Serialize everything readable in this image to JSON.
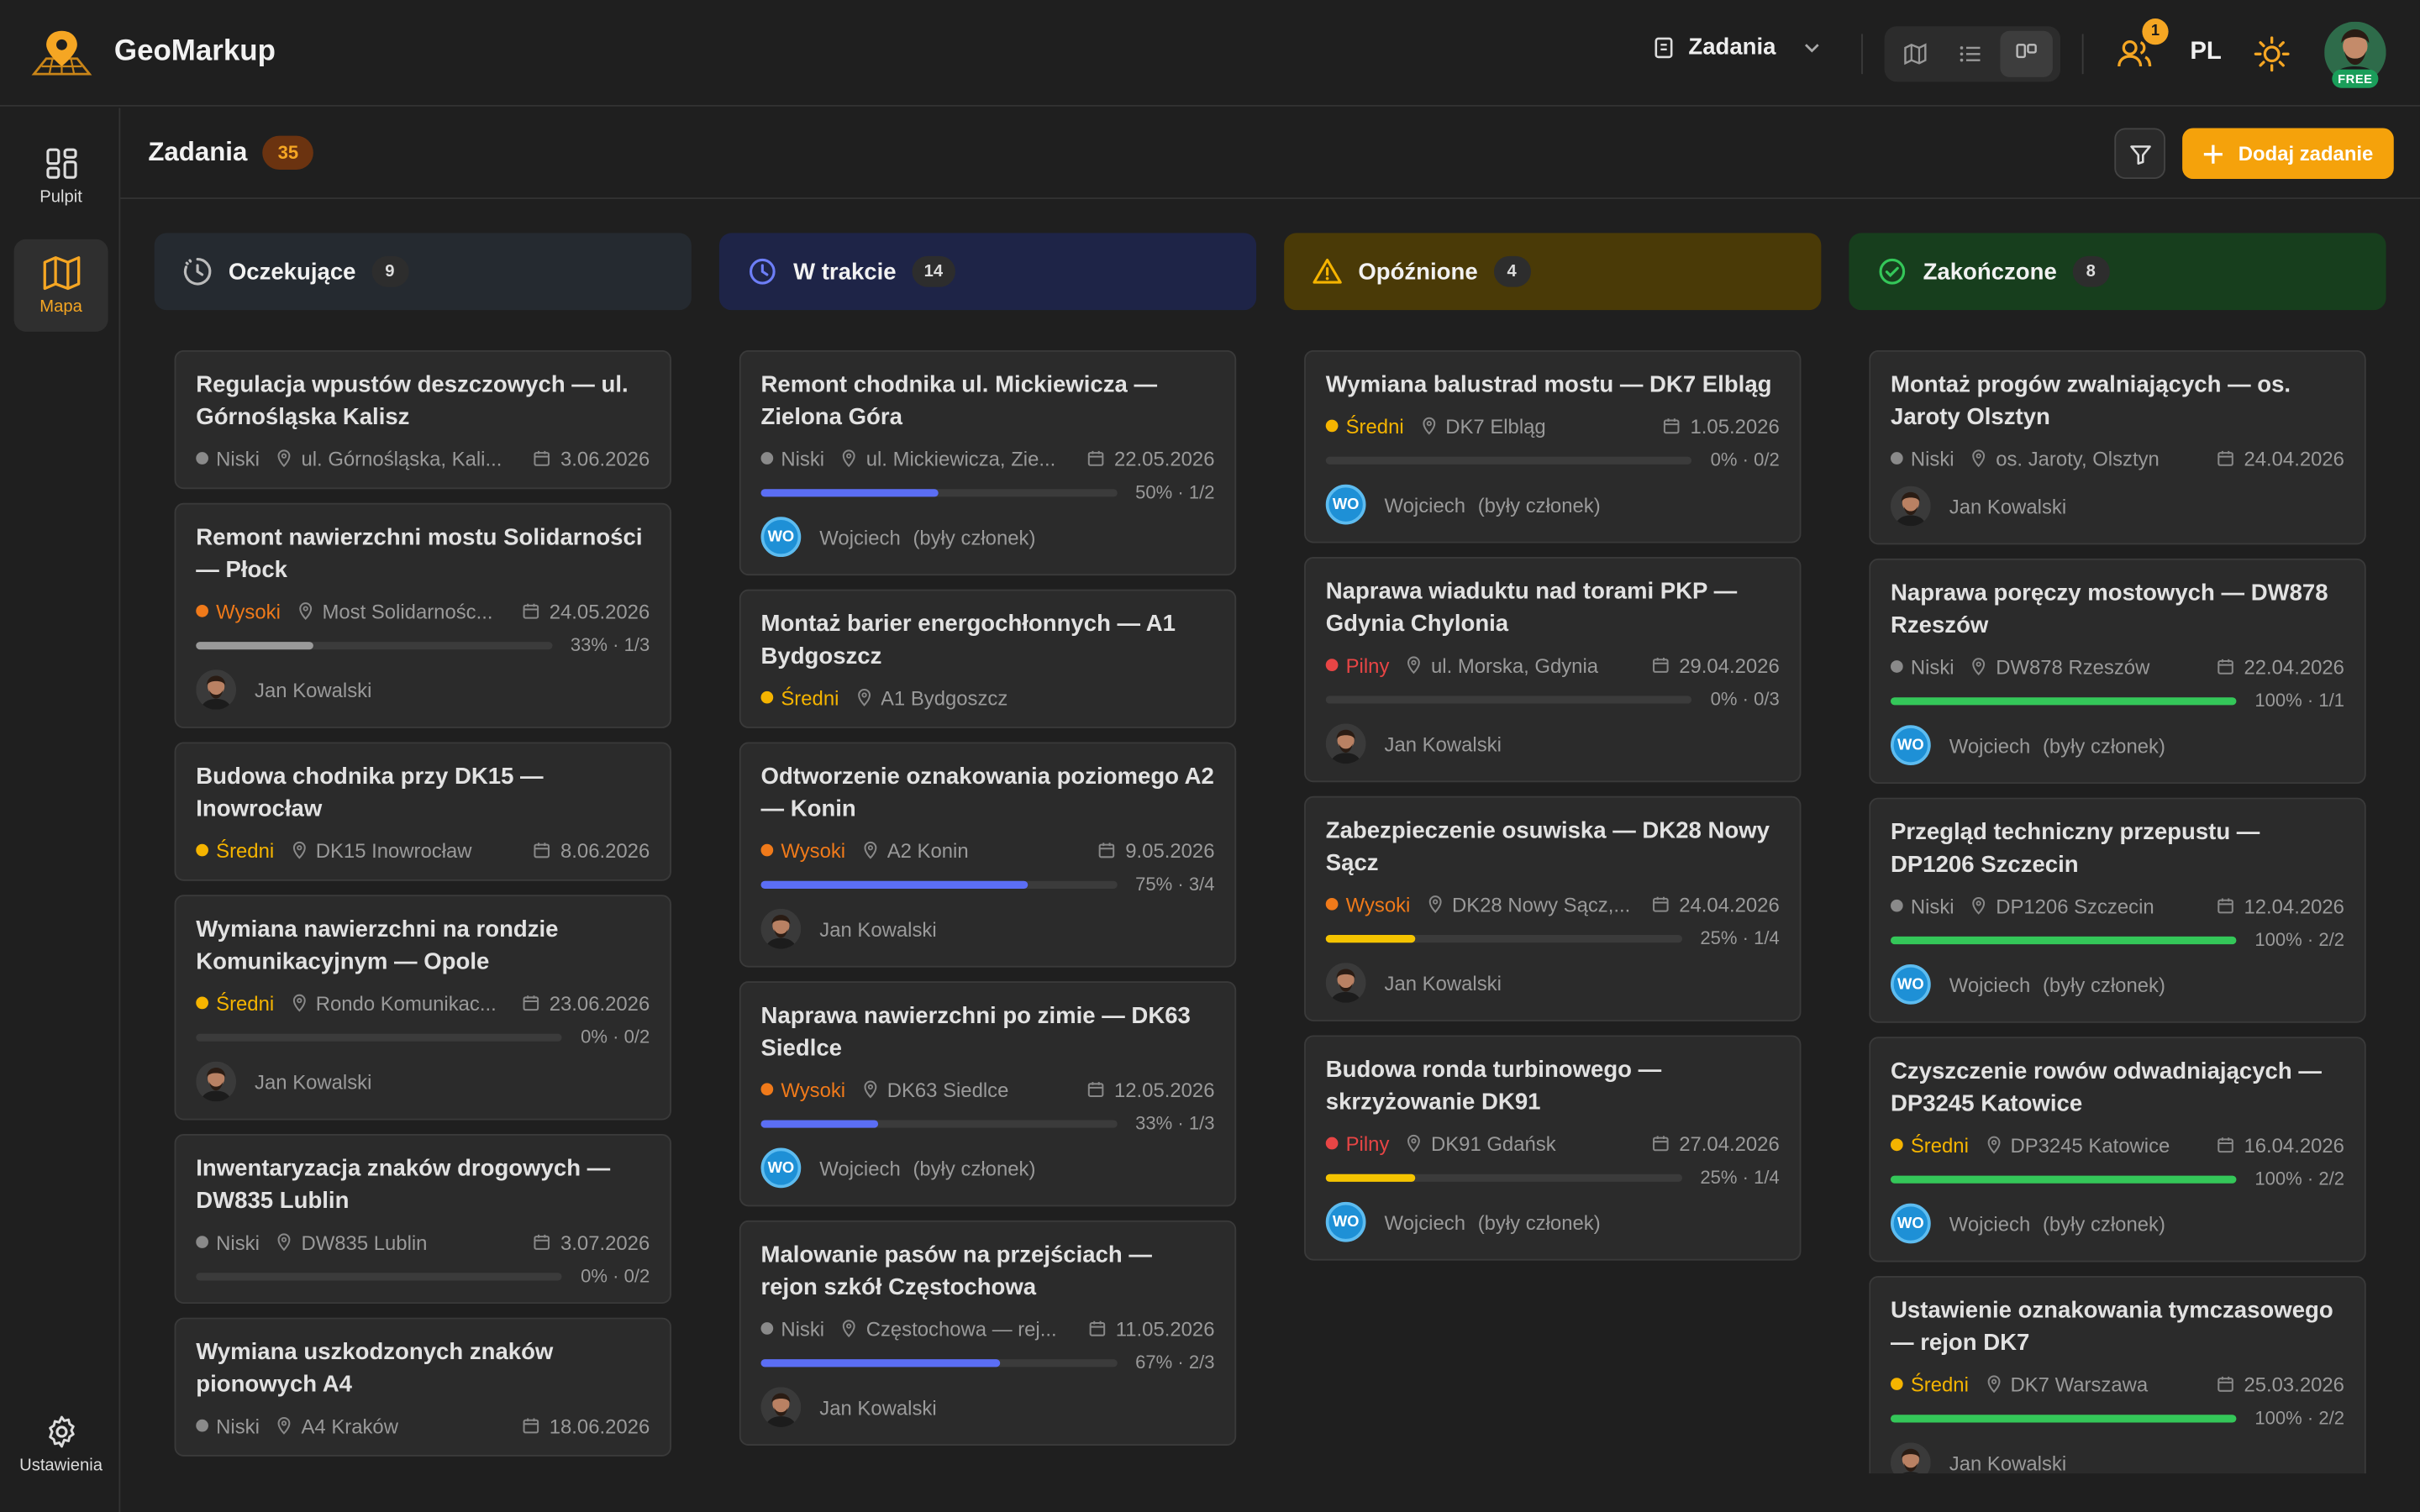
{
  "app": {
    "name": "GeoMarkup"
  },
  "header": {
    "view_selector": "Zadania",
    "notification_count": "1",
    "language": "PL",
    "plan_badge": "FREE"
  },
  "sidebar": {
    "items": [
      {
        "label": "Pulpit"
      },
      {
        "label": "Mapa"
      }
    ],
    "settings_label": "Ustawienia"
  },
  "page": {
    "title": "Zadania",
    "count": "35",
    "add_button": "Dodaj zadanie"
  },
  "colors": {
    "accent": "#f5a623",
    "low": "#8a8a8a",
    "medium": "#f5b400",
    "high": "#f07a1a",
    "urgent": "#e84545",
    "progress_blue": "#5b6ef5",
    "progress_yellow": "#f5c400",
    "progress_green": "#34c759"
  },
  "columns": [
    {
      "title": "Oczekujące",
      "count": "9",
      "cards": [
        {
          "title": "Regulacja wpustów deszczowych — ul. Górnośląska Kalisz",
          "priority": "Niski",
          "priority_color": "low",
          "location": "ul. Górnośląska, Kali...",
          "date": "3.06.2026"
        },
        {
          "title": "Remont nawierzchni mostu Solidarności — Płock",
          "priority": "Wysoki",
          "priority_color": "high",
          "location": "Most Solidarnośc...",
          "date": "24.05.2026",
          "progress": 0.33,
          "progress_text": "33% · 1/3",
          "progress_color": "#9a9a9a",
          "assignee": "Jan Kowalski"
        },
        {
          "title": "Budowa chodnika przy DK15 — Inowrocław",
          "priority": "Średni",
          "priority_color": "medium",
          "location": "DK15 Inowrocław",
          "date": "8.06.2026"
        },
        {
          "title": "Wymiana nawierzchni na rondzie Komunikacyjnym — Opole",
          "priority": "Średni",
          "priority_color": "medium",
          "location": "Rondo Komunikac...",
          "date": "23.06.2026",
          "progress": 0,
          "progress_text": "0% · 0/2",
          "progress_color": "#9a9a9a",
          "assignee": "Jan Kowalski"
        },
        {
          "title": "Inwentaryzacja znaków drogowych — DW835 Lublin",
          "priority": "Niski",
          "priority_color": "low",
          "location": "DW835 Lublin",
          "date": "3.07.2026",
          "progress": 0,
          "progress_text": "0% · 0/2",
          "progress_color": "#9a9a9a"
        },
        {
          "title": "Wymiana uszkodzonych znaków pionowych A4",
          "priority": "Niski",
          "priority_color": "low",
          "location": "A4 Kraków",
          "date": "18.06.2026"
        }
      ]
    },
    {
      "title": "W trakcie",
      "count": "14",
      "cards": [
        {
          "title": "Remont chodnika ul. Mickiewicza — Zielona Góra",
          "priority": "Niski",
          "priority_color": "low",
          "location": "ul. Mickiewicza, Zie...",
          "date": "22.05.2026",
          "progress": 0.5,
          "progress_text": "50% · 1/2",
          "progress_color": "#5b6ef5",
          "assignee": "Wojciech",
          "assignee_note": "(były członek)",
          "initials": "WO"
        },
        {
          "title": "Montaż barier energochłonnych — A1 Bydgoszcz",
          "priority": "Średni",
          "priority_color": "medium",
          "location": "A1 Bydgoszcz",
          "date": ""
        },
        {
          "title": "Odtworzenie oznakowania poziomego A2 — Konin",
          "priority": "Wysoki",
          "priority_color": "high",
          "location": "A2 Konin",
          "date": "9.05.2026",
          "progress": 0.75,
          "progress_text": "75% · 3/4",
          "progress_color": "#5b6ef5",
          "assignee": "Jan Kowalski"
        },
        {
          "title": "Naprawa nawierzchni po zimie — DK63 Siedlce",
          "priority": "Wysoki",
          "priority_color": "high",
          "location": "DK63 Siedlce",
          "date": "12.05.2026",
          "progress": 0.33,
          "progress_text": "33% · 1/3",
          "progress_color": "#5b6ef5",
          "assignee": "Wojciech",
          "assignee_note": "(były członek)",
          "initials": "WO"
        },
        {
          "title": "Malowanie pasów na przejściach — rejon szkół Częstochowa",
          "priority": "Niski",
          "priority_color": "low",
          "location": "Częstochowa — rej...",
          "date": "11.05.2026",
          "progress": 0.67,
          "progress_text": "67% · 2/3",
          "progress_color": "#5b6ef5",
          "assignee": "Jan Kowalski"
        }
      ]
    },
    {
      "title": "Opóźnione",
      "count": "4",
      "cards": [
        {
          "title": "Wymiana balustrad mostu — DK7 Elbląg",
          "priority": "Średni",
          "priority_color": "medium",
          "location": "DK7 Elbląg",
          "date": "1.05.2026",
          "progress": 0,
          "progress_text": "0% · 0/2",
          "progress_color": "#9a9a9a",
          "assignee": "Wojciech",
          "assignee_note": "(były członek)",
          "initials": "WO"
        },
        {
          "title": "Naprawa wiaduktu nad torami PKP — Gdynia Chylonia",
          "priority": "Pilny",
          "priority_color": "urgent",
          "location": "ul. Morska, Gdynia",
          "date": "29.04.2026",
          "progress": 0,
          "progress_text": "0% · 0/3",
          "progress_color": "#9a9a9a",
          "assignee": "Jan Kowalski"
        },
        {
          "title": "Zabezpieczenie osuwiska — DK28 Nowy Sącz",
          "priority": "Wysoki",
          "priority_color": "high",
          "location": "DK28 Nowy Sącz,...",
          "date": "24.04.2026",
          "progress": 0.25,
          "progress_text": "25% · 1/4",
          "progress_color": "#f5c400",
          "assignee": "Jan Kowalski"
        },
        {
          "title": "Budowa ronda turbinowego — skrzyżowanie DK91",
          "priority": "Pilny",
          "priority_color": "urgent",
          "location": "DK91 Gdańsk",
          "date": "27.04.2026",
          "progress": 0.25,
          "progress_text": "25% · 1/4",
          "progress_color": "#f5c400",
          "assignee": "Wojciech",
          "assignee_note": "(były członek)",
          "initials": "WO"
        }
      ]
    },
    {
      "title": "Zakończone",
      "count": "8",
      "cards": [
        {
          "title": "Montaż progów zwalniających — os. Jaroty Olsztyn",
          "priority": "Niski",
          "priority_color": "low",
          "location": "os. Jaroty, Olsztyn",
          "date": "24.04.2026",
          "assignee": "Jan Kowalski"
        },
        {
          "title": "Naprawa poręczy mostowych — DW878 Rzeszów",
          "priority": "Niski",
          "priority_color": "low",
          "location": "DW878 Rzeszów",
          "date": "22.04.2026",
          "progress": 1,
          "progress_text": "100% · 1/1",
          "progress_color": "#34c759",
          "assignee": "Wojciech",
          "assignee_note": "(były członek)",
          "initials": "WO"
        },
        {
          "title": "Przegląd techniczny przepustu — DP1206 Szczecin",
          "priority": "Niski",
          "priority_color": "low",
          "location": "DP1206 Szczecin",
          "date": "12.04.2026",
          "progress": 1,
          "progress_text": "100% · 2/2",
          "progress_color": "#34c759",
          "assignee": "Wojciech",
          "assignee_note": "(były członek)",
          "initials": "WO"
        },
        {
          "title": "Czyszczenie rowów odwadniających — DP3245 Katowice",
          "priority": "Średni",
          "priority_color": "medium",
          "location": "DP3245 Katowice",
          "date": "16.04.2026",
          "progress": 1,
          "progress_text": "100% · 2/2",
          "progress_color": "#34c759",
          "assignee": "Wojciech",
          "assignee_note": "(były członek)",
          "initials": "WO"
        },
        {
          "title": "Ustawienie oznakowania tymczasowego — rejon DK7",
          "priority": "Średni",
          "priority_color": "medium",
          "location": "DK7 Warszawa",
          "date": "25.03.2026",
          "progress": 1,
          "progress_text": "100% · 2/2",
          "progress_color": "#34c759",
          "assignee": "Jan Kowalski"
        }
      ]
    }
  ]
}
